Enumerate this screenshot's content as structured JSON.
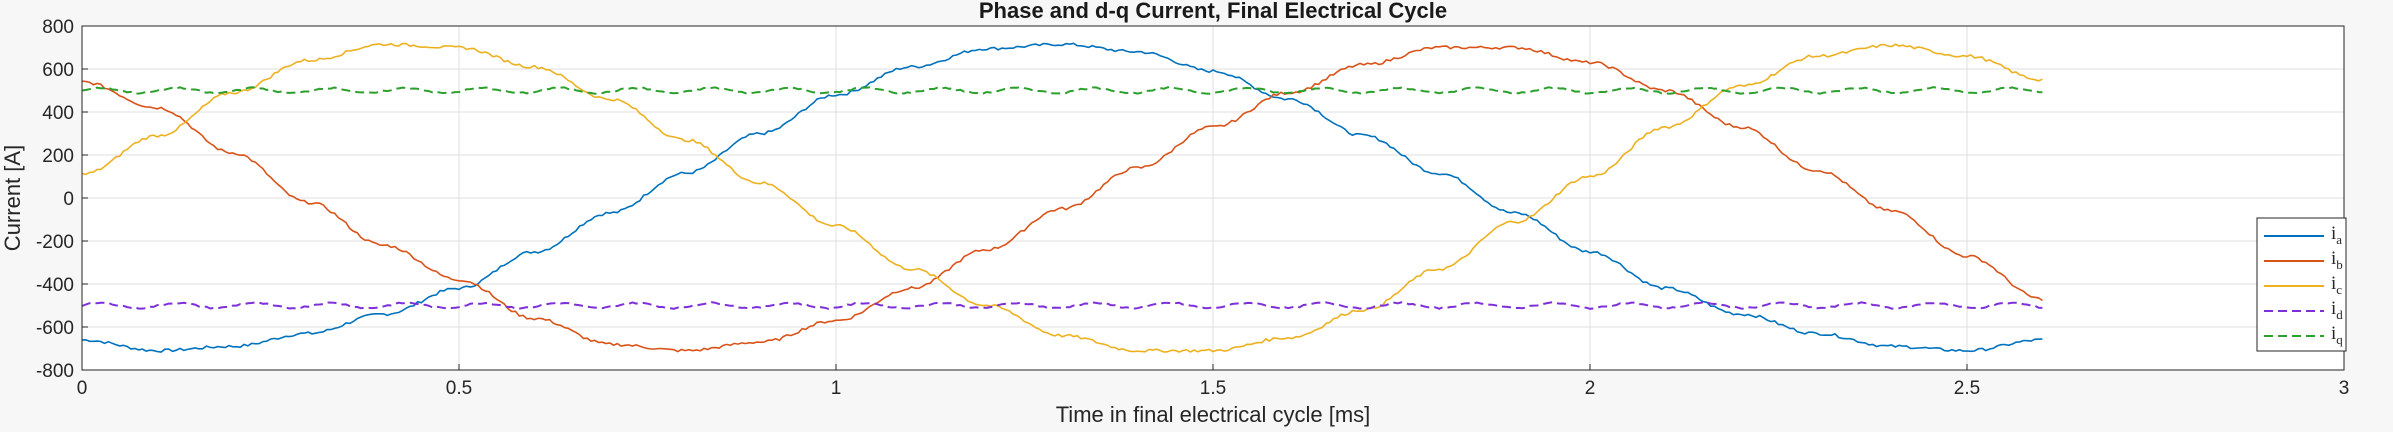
{
  "chart_data": {
    "type": "line",
    "title": "Phase and d-q Current, Final Electrical Cycle",
    "xlabel": "Time in final electrical cycle [ms]",
    "ylabel": "Current [A]",
    "xlim": [
      0,
      3
    ],
    "ylim": [
      -800,
      800
    ],
    "xticks": [
      0,
      0.5,
      1,
      1.5,
      2,
      2.5,
      3
    ],
    "xtick_labels": [
      "0",
      "0.5",
      "1",
      "1.5",
      "2",
      "2.5",
      "3"
    ],
    "yticks": [
      -800,
      -600,
      -400,
      -200,
      0,
      200,
      400,
      600,
      800
    ],
    "ytick_labels": [
      "-800",
      "-600",
      "-400",
      "-200",
      "0",
      "200",
      "400",
      "600",
      "800"
    ],
    "grid": true,
    "legend_position": "bottom-right",
    "x_end": 2.6,
    "series": [
      {
        "name": "ia",
        "label_main": "i",
        "label_sub": "a",
        "color": "#0072BD",
        "dash": "solid",
        "x": [
          0,
          0.1,
          0.2,
          0.3,
          0.4,
          0.5,
          0.6,
          0.7,
          0.8,
          0.9,
          1.0,
          1.1,
          1.2,
          1.3,
          1.4,
          1.5,
          1.6,
          1.7,
          1.8,
          1.9,
          2.0,
          2.1,
          2.2,
          2.3,
          2.4,
          2.5,
          2.6
        ],
        "values": [
          -660,
          -710,
          -690,
          -630,
          -540,
          -420,
          -250,
          -70,
          115,
          300,
          480,
          610,
          695,
          715,
          680,
          590,
          460,
          290,
          115,
          -70,
          -250,
          -420,
          -540,
          -630,
          -690,
          -710,
          -660
        ]
      },
      {
        "name": "ib",
        "label_main": "i",
        "label_sub": "b",
        "color": "#D95319",
        "dash": "solid",
        "x": [
          0,
          0.1,
          0.2,
          0.3,
          0.4,
          0.5,
          0.6,
          0.7,
          0.8,
          0.9,
          1.0,
          1.1,
          1.2,
          1.3,
          1.4,
          1.5,
          1.6,
          1.7,
          1.8,
          1.9,
          2.0,
          2.1,
          2.2,
          2.3,
          2.4,
          2.5,
          2.6
        ],
        "values": [
          540,
          420,
          210,
          -20,
          -220,
          -380,
          -560,
          -680,
          -710,
          -670,
          -570,
          -420,
          -240,
          -50,
          140,
          330,
          490,
          620,
          700,
          700,
          630,
          500,
          330,
          130,
          -60,
          -270,
          -470
        ]
      },
      {
        "name": "ic",
        "label_main": "i",
        "label_sub": "c",
        "color": "#EDB120",
        "dash": "solid",
        "x": [
          0,
          0.1,
          0.2,
          0.3,
          0.4,
          0.5,
          0.6,
          0.7,
          0.8,
          0.9,
          1.0,
          1.1,
          1.2,
          1.3,
          1.4,
          1.5,
          1.6,
          1.7,
          1.8,
          1.9,
          2.0,
          2.1,
          2.2,
          2.3,
          2.4,
          2.5,
          2.6
        ],
        "values": [
          110,
          290,
          490,
          640,
          715,
          700,
          610,
          460,
          270,
          70,
          -130,
          -330,
          -500,
          -640,
          -710,
          -710,
          -650,
          -520,
          -330,
          -110,
          100,
          330,
          520,
          660,
          710,
          660,
          550
        ]
      },
      {
        "name": "id",
        "label_main": "i",
        "label_sub": "d",
        "color": "#7E2FD8",
        "dash": "dashed",
        "x": [
          0,
          2.6
        ],
        "values": [
          -500,
          -500
        ],
        "ripple": 12
      },
      {
        "name": "iq",
        "label_main": "i",
        "label_sub": "q",
        "color": "#2CA02C",
        "dash": "dashed",
        "x": [
          0,
          2.6
        ],
        "values": [
          500,
          500
        ],
        "ripple": 12
      }
    ]
  }
}
